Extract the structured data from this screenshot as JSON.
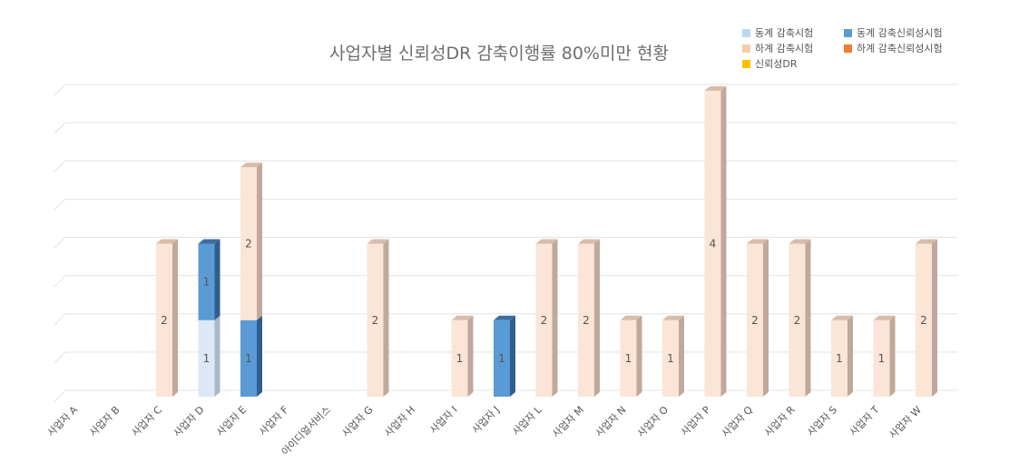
{
  "chart_data": {
    "type": "bar",
    "stacked": true,
    "title": "사업자별 신뢰성DR 감축이행률 80%미만 현황",
    "categories": [
      "사업자 A",
      "사업자 B",
      "사업자 C",
      "사업자 D",
      "사업자 E",
      "사업자 F",
      "아이디얼서비스",
      "사업자 G",
      "사업자 H",
      "사업자 I",
      "사업자 J",
      "사업자 L",
      "사업자 M",
      "사업자 N",
      "사업자 O",
      "사업자 P",
      "사업자 Q",
      "사업자 R",
      "사업자 S",
      "사업자 T",
      "사업자 W"
    ],
    "series": [
      {
        "name": "동계 감축시험",
        "color": "#dde8f6",
        "values": [
          0,
          0,
          0,
          1,
          0,
          0,
          0,
          0,
          0,
          0,
          0,
          0,
          0,
          0,
          0,
          0,
          0,
          0,
          0,
          0,
          0
        ]
      },
      {
        "name": "동계 감축신뢰성시험",
        "color": "#5b9bd5",
        "values": [
          0,
          0,
          0,
          1,
          1,
          0,
          0,
          0,
          0,
          0,
          1,
          0,
          0,
          0,
          0,
          0,
          0,
          0,
          0,
          0,
          0
        ]
      },
      {
        "name": "하계 감축시험",
        "color": "#fbe5d6",
        "values": [
          0,
          0,
          2,
          0,
          2,
          0,
          0,
          2,
          0,
          1,
          0,
          2,
          2,
          1,
          1,
          4,
          2,
          2,
          1,
          1,
          2
        ]
      },
      {
        "name": "하계 감축신뢰성시험",
        "color": "#ed7d31",
        "values": [
          0,
          0,
          0,
          0,
          0,
          0,
          0,
          0,
          0,
          0,
          0,
          0,
          0,
          0,
          0,
          0,
          0,
          0,
          0,
          0,
          0
        ]
      },
      {
        "name": "신뢰성DR",
        "color": "#ffc000",
        "values": [
          0,
          0,
          0,
          0,
          0,
          0,
          0,
          0,
          0,
          0,
          0,
          0,
          0,
          0,
          0,
          0,
          0,
          0,
          0,
          0,
          0
        ]
      }
    ],
    "ylim": [
      0,
      4
    ],
    "ygrid_step": 0.5,
    "grid": true,
    "legend_position": "top-right"
  }
}
